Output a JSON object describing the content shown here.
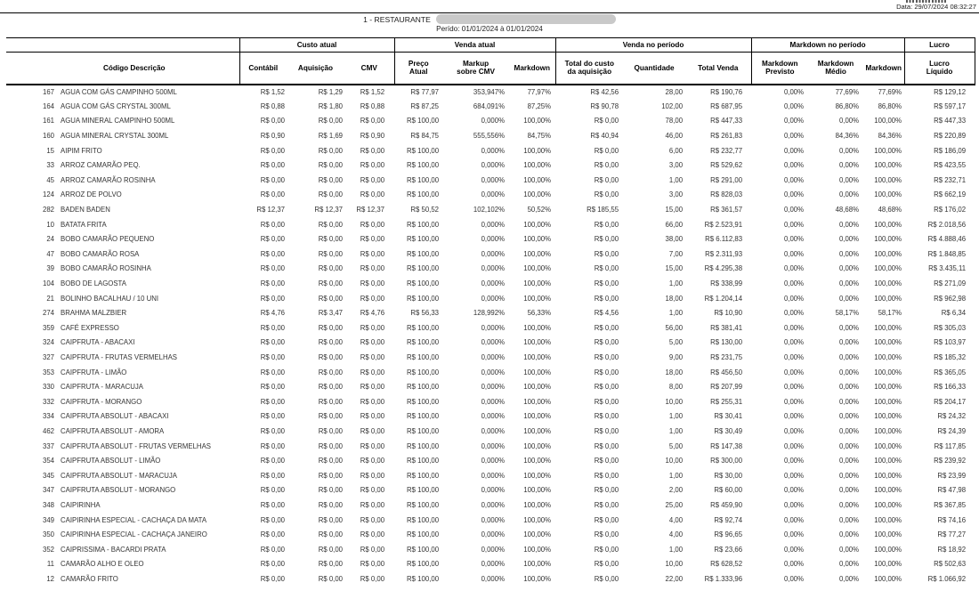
{
  "meta": {
    "generated_label": "Data: 29/07/2024 08:32:27"
  },
  "header": {
    "title": "1 - RESTAURANTE",
    "period": "Perído: 01/01/2024 à 01/01/2024"
  },
  "table": {
    "id_header": "Código Descrição",
    "groups": [
      {
        "label": "Custo atual"
      },
      {
        "label": "Venda atual"
      },
      {
        "label": "Venda no período"
      },
      {
        "label": "Markdown no período"
      },
      {
        "label": "Lucro"
      }
    ],
    "columns": [
      {
        "label": "Contábil"
      },
      {
        "label": "Aquisição"
      },
      {
        "label": "CMV"
      },
      {
        "label": "Preço\nAtual"
      },
      {
        "label": "Markup\nsobre CMV"
      },
      {
        "label": "Markdown"
      },
      {
        "label": "Total do custo\nda aquisição"
      },
      {
        "label": "Quantidade"
      },
      {
        "label": "Total Venda"
      },
      {
        "label": "Markdown\nPrevisto"
      },
      {
        "label": "Markdown\nMédio"
      },
      {
        "label": "Markdown"
      },
      {
        "label": "Lucro\nLíquido"
      }
    ],
    "rows": [
      [
        "167",
        "AGUA COM GÁS CAMPINHO 500ML",
        "R$ 1,52",
        "R$ 1,29",
        "R$ 1,52",
        "R$ 77,97",
        "353,947%",
        "77,97%",
        "R$ 42,56",
        "28,00",
        "R$ 190,76",
        "0,00%",
        "77,69%",
        "77,69%",
        "R$ 129,12"
      ],
      [
        "164",
        "AGUA COM GÁS CRYSTAL 300ML",
        "R$ 0,88",
        "R$ 1,80",
        "R$ 0,88",
        "R$ 87,25",
        "684,091%",
        "87,25%",
        "R$ 90,78",
        "102,00",
        "R$ 687,95",
        "0,00%",
        "86,80%",
        "86,80%",
        "R$ 597,17"
      ],
      [
        "161",
        "AGUA MINERAL CAMPINHO 500ML",
        "R$ 0,00",
        "R$ 0,00",
        "R$ 0,00",
        "R$ 100,00",
        "0,000%",
        "100,00%",
        "R$ 0,00",
        "78,00",
        "R$ 447,33",
        "0,00%",
        "0,00%",
        "100,00%",
        "R$ 447,33"
      ],
      [
        "160",
        "AGUA MINERAL CRYSTAL 300ML",
        "R$ 0,90",
        "R$ 1,69",
        "R$ 0,90",
        "R$ 84,75",
        "555,556%",
        "84,75%",
        "R$ 40,94",
        "46,00",
        "R$ 261,83",
        "0,00%",
        "84,36%",
        "84,36%",
        "R$ 220,89"
      ],
      [
        "15",
        "AIPIM FRITO",
        "R$ 0,00",
        "R$ 0,00",
        "R$ 0,00",
        "R$ 100,00",
        "0,000%",
        "100,00%",
        "R$ 0,00",
        "6,00",
        "R$ 232,77",
        "0,00%",
        "0,00%",
        "100,00%",
        "R$ 186,09"
      ],
      [
        "33",
        "ARROZ CAMARÃO PEQ.",
        "R$ 0,00",
        "R$ 0,00",
        "R$ 0,00",
        "R$ 100,00",
        "0,000%",
        "100,00%",
        "R$ 0,00",
        "3,00",
        "R$ 529,62",
        "0,00%",
        "0,00%",
        "100,00%",
        "R$ 423,55"
      ],
      [
        "45",
        "ARROZ CAMARÃO ROSINHA",
        "R$ 0,00",
        "R$ 0,00",
        "R$ 0,00",
        "R$ 100,00",
        "0,000%",
        "100,00%",
        "R$ 0,00",
        "1,00",
        "R$ 291,00",
        "0,00%",
        "0,00%",
        "100,00%",
        "R$ 232,71"
      ],
      [
        "124",
        "ARROZ DE POLVO",
        "R$ 0,00",
        "R$ 0,00",
        "R$ 0,00",
        "R$ 100,00",
        "0,000%",
        "100,00%",
        "R$ 0,00",
        "3,00",
        "R$ 828,03",
        "0,00%",
        "0,00%",
        "100,00%",
        "R$ 662,19"
      ],
      [
        "282",
        "BADEN BADEN",
        "R$ 12,37",
        "R$ 12,37",
        "R$ 12,37",
        "R$ 50,52",
        "102,102%",
        "50,52%",
        "R$ 185,55",
        "15,00",
        "R$ 361,57",
        "0,00%",
        "48,68%",
        "48,68%",
        "R$ 176,02"
      ],
      [
        "10",
        "BATATA FRITA",
        "R$ 0,00",
        "R$ 0,00",
        "R$ 0,00",
        "R$ 100,00",
        "0,000%",
        "100,00%",
        "R$ 0,00",
        "66,00",
        "R$ 2.523,91",
        "0,00%",
        "0,00%",
        "100,00%",
        "R$ 2.018,56"
      ],
      [
        "24",
        "BOBO CAMARÃO PEQUENO",
        "R$ 0,00",
        "R$ 0,00",
        "R$ 0,00",
        "R$ 100,00",
        "0,000%",
        "100,00%",
        "R$ 0,00",
        "38,00",
        "R$ 6.112,83",
        "0,00%",
        "0,00%",
        "100,00%",
        "R$ 4.888,46"
      ],
      [
        "47",
        "BOBO CAMARÃO ROSA",
        "R$ 0,00",
        "R$ 0,00",
        "R$ 0,00",
        "R$ 100,00",
        "0,000%",
        "100,00%",
        "R$ 0,00",
        "7,00",
        "R$ 2.311,93",
        "0,00%",
        "0,00%",
        "100,00%",
        "R$ 1.848,85"
      ],
      [
        "39",
        "BOBO CAMARÃO ROSINHA",
        "R$ 0,00",
        "R$ 0,00",
        "R$ 0,00",
        "R$ 100,00",
        "0,000%",
        "100,00%",
        "R$ 0,00",
        "15,00",
        "R$ 4.295,38",
        "0,00%",
        "0,00%",
        "100,00%",
        "R$ 3.435,11"
      ],
      [
        "104",
        "BOBO DE LAGOSTA",
        "R$ 0,00",
        "R$ 0,00",
        "R$ 0,00",
        "R$ 100,00",
        "0,000%",
        "100,00%",
        "R$ 0,00",
        "1,00",
        "R$ 338,99",
        "0,00%",
        "0,00%",
        "100,00%",
        "R$ 271,09"
      ],
      [
        "21",
        "BOLINHO BACALHAU / 10 UNI",
        "R$ 0,00",
        "R$ 0,00",
        "R$ 0,00",
        "R$ 100,00",
        "0,000%",
        "100,00%",
        "R$ 0,00",
        "18,00",
        "R$ 1.204,14",
        "0,00%",
        "0,00%",
        "100,00%",
        "R$ 962,98"
      ],
      [
        "274",
        "BRAHMA MALZBIER",
        "R$ 4,76",
        "R$ 3,47",
        "R$ 4,76",
        "R$ 56,33",
        "128,992%",
        "56,33%",
        "R$ 4,56",
        "1,00",
        "R$ 10,90",
        "0,00%",
        "58,17%",
        "58,17%",
        "R$ 6,34"
      ],
      [
        "359",
        "CAFÉ EXPRESSO",
        "R$ 0,00",
        "R$ 0,00",
        "R$ 0,00",
        "R$ 100,00",
        "0,000%",
        "100,00%",
        "R$ 0,00",
        "56,00",
        "R$ 381,41",
        "0,00%",
        "0,00%",
        "100,00%",
        "R$ 305,03"
      ],
      [
        "324",
        "CAIPFRUTA - ABACAXI",
        "R$ 0,00",
        "R$ 0,00",
        "R$ 0,00",
        "R$ 100,00",
        "0,000%",
        "100,00%",
        "R$ 0,00",
        "5,00",
        "R$ 130,00",
        "0,00%",
        "0,00%",
        "100,00%",
        "R$ 103,97"
      ],
      [
        "327",
        "CAIPFRUTA - FRUTAS VERMELHAS",
        "R$ 0,00",
        "R$ 0,00",
        "R$ 0,00",
        "R$ 100,00",
        "0,000%",
        "100,00%",
        "R$ 0,00",
        "9,00",
        "R$ 231,75",
        "0,00%",
        "0,00%",
        "100,00%",
        "R$ 185,32"
      ],
      [
        "353",
        "CAIPFRUTA - LIMÃO",
        "R$ 0,00",
        "R$ 0,00",
        "R$ 0,00",
        "R$ 100,00",
        "0,000%",
        "100,00%",
        "R$ 0,00",
        "18,00",
        "R$ 456,50",
        "0,00%",
        "0,00%",
        "100,00%",
        "R$ 365,05"
      ],
      [
        "330",
        "CAIPFRUTA - MARACUJA",
        "R$ 0,00",
        "R$ 0,00",
        "R$ 0,00",
        "R$ 100,00",
        "0,000%",
        "100,00%",
        "R$ 0,00",
        "8,00",
        "R$ 207,99",
        "0,00%",
        "0,00%",
        "100,00%",
        "R$ 166,33"
      ],
      [
        "332",
        "CAIPFRUTA - MORANGO",
        "R$ 0,00",
        "R$ 0,00",
        "R$ 0,00",
        "R$ 100,00",
        "0,000%",
        "100,00%",
        "R$ 0,00",
        "10,00",
        "R$ 255,31",
        "0,00%",
        "0,00%",
        "100,00%",
        "R$ 204,17"
      ],
      [
        "334",
        "CAIPFRUTA ABSOLUT - ABACAXI",
        "R$ 0,00",
        "R$ 0,00",
        "R$ 0,00",
        "R$ 100,00",
        "0,000%",
        "100,00%",
        "R$ 0,00",
        "1,00",
        "R$ 30,41",
        "0,00%",
        "0,00%",
        "100,00%",
        "R$ 24,32"
      ],
      [
        "462",
        "CAIPFRUTA ABSOLUT - AMORA",
        "R$ 0,00",
        "R$ 0,00",
        "R$ 0,00",
        "R$ 100,00",
        "0,000%",
        "100,00%",
        "R$ 0,00",
        "1,00",
        "R$ 30,49",
        "0,00%",
        "0,00%",
        "100,00%",
        "R$ 24,39"
      ],
      [
        "337",
        "CAIPFRUTA ABSOLUT - FRUTAS VERMELHAS",
        "R$ 0,00",
        "R$ 0,00",
        "R$ 0,00",
        "R$ 100,00",
        "0,000%",
        "100,00%",
        "R$ 0,00",
        "5,00",
        "R$ 147,38",
        "0,00%",
        "0,00%",
        "100,00%",
        "R$ 117,85"
      ],
      [
        "354",
        "CAIPFRUTA ABSOLUT - LIMÃO",
        "R$ 0,00",
        "R$ 0,00",
        "R$ 0,00",
        "R$ 100,00",
        "0,000%",
        "100,00%",
        "R$ 0,00",
        "10,00",
        "R$ 300,00",
        "0,00%",
        "0,00%",
        "100,00%",
        "R$ 239,92"
      ],
      [
        "345",
        "CAIPFRUTA ABSOLUT - MARACUJA",
        "R$ 0,00",
        "R$ 0,00",
        "R$ 0,00",
        "R$ 100,00",
        "0,000%",
        "100,00%",
        "R$ 0,00",
        "1,00",
        "R$ 30,00",
        "0,00%",
        "0,00%",
        "100,00%",
        "R$ 23,99"
      ],
      [
        "347",
        "CAIPFRUTA ABSOLUT - MORANGO",
        "R$ 0,00",
        "R$ 0,00",
        "R$ 0,00",
        "R$ 100,00",
        "0,000%",
        "100,00%",
        "R$ 0,00",
        "2,00",
        "R$ 60,00",
        "0,00%",
        "0,00%",
        "100,00%",
        "R$ 47,98"
      ],
      [
        "348",
        "CAIPIRINHA",
        "R$ 0,00",
        "R$ 0,00",
        "R$ 0,00",
        "R$ 100,00",
        "0,000%",
        "100,00%",
        "R$ 0,00",
        "25,00",
        "R$ 459,90",
        "0,00%",
        "0,00%",
        "100,00%",
        "R$ 367,85"
      ],
      [
        "349",
        "CAIPIRINHA ESPECIAL - CACHAÇA DA MATA",
        "R$ 0,00",
        "R$ 0,00",
        "R$ 0,00",
        "R$ 100,00",
        "0,000%",
        "100,00%",
        "R$ 0,00",
        "4,00",
        "R$ 92,74",
        "0,00%",
        "0,00%",
        "100,00%",
        "R$ 74,16"
      ],
      [
        "350",
        "CAIPIRINHA ESPECIAL - CACHAÇA JANEIRO",
        "R$ 0,00",
        "R$ 0,00",
        "R$ 0,00",
        "R$ 100,00",
        "0,000%",
        "100,00%",
        "R$ 0,00",
        "4,00",
        "R$ 96,65",
        "0,00%",
        "0,00%",
        "100,00%",
        "R$ 77,27"
      ],
      [
        "352",
        "CAIPRISSIMA - BACARDI PRATA",
        "R$ 0,00",
        "R$ 0,00",
        "R$ 0,00",
        "R$ 100,00",
        "0,000%",
        "100,00%",
        "R$ 0,00",
        "1,00",
        "R$ 23,66",
        "0,00%",
        "0,00%",
        "100,00%",
        "R$ 18,92"
      ],
      [
        "11",
        "CAMARÃO ALHO E OLEO",
        "R$ 0,00",
        "R$ 0,00",
        "R$ 0,00",
        "R$ 100,00",
        "0,000%",
        "100,00%",
        "R$ 0,00",
        "10,00",
        "R$ 628,52",
        "0,00%",
        "0,00%",
        "100,00%",
        "R$ 502,63"
      ],
      [
        "12",
        "CAMARÃO FRITO",
        "R$ 0,00",
        "R$ 0,00",
        "R$ 0,00",
        "R$ 100,00",
        "0,000%",
        "100,00%",
        "R$ 0,00",
        "22,00",
        "R$ 1.333,96",
        "0,00%",
        "0,00%",
        "100,00%",
        "R$ 1.066,92"
      ]
    ]
  }
}
